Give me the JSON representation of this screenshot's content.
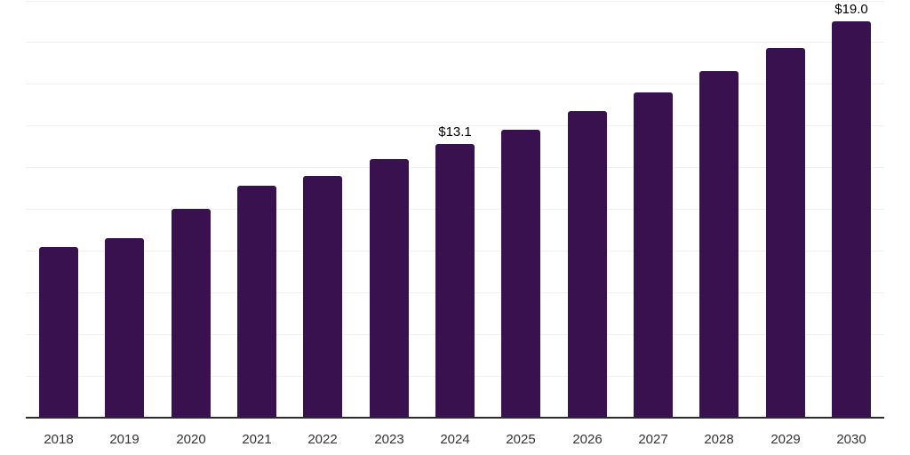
{
  "chart_data": {
    "type": "bar",
    "title": "",
    "xlabel": "",
    "ylabel": "",
    "categories": [
      "2018",
      "2019",
      "2020",
      "2021",
      "2022",
      "2023",
      "2024",
      "2025",
      "2026",
      "2027",
      "2028",
      "2029",
      "2030"
    ],
    "values": [
      8.2,
      8.6,
      10.0,
      11.1,
      11.6,
      12.4,
      13.1,
      13.8,
      14.7,
      15.6,
      16.6,
      17.7,
      19.0
    ],
    "data_labels": [
      {
        "category": "2024",
        "text": "$13.1"
      },
      {
        "category": "2030",
        "text": "$19.0"
      }
    ],
    "ylim": [
      0,
      20
    ],
    "gridline_step": 2,
    "grid": "horizontal",
    "y_axis_tick_labels": "none",
    "legend": "none",
    "colors": {
      "bar": "#39114f",
      "gridline": "#f0f0f0",
      "axis_line": "#2b2b2b",
      "tick_label": "#333333",
      "data_label": "#000000",
      "background": "#ffffff"
    }
  }
}
